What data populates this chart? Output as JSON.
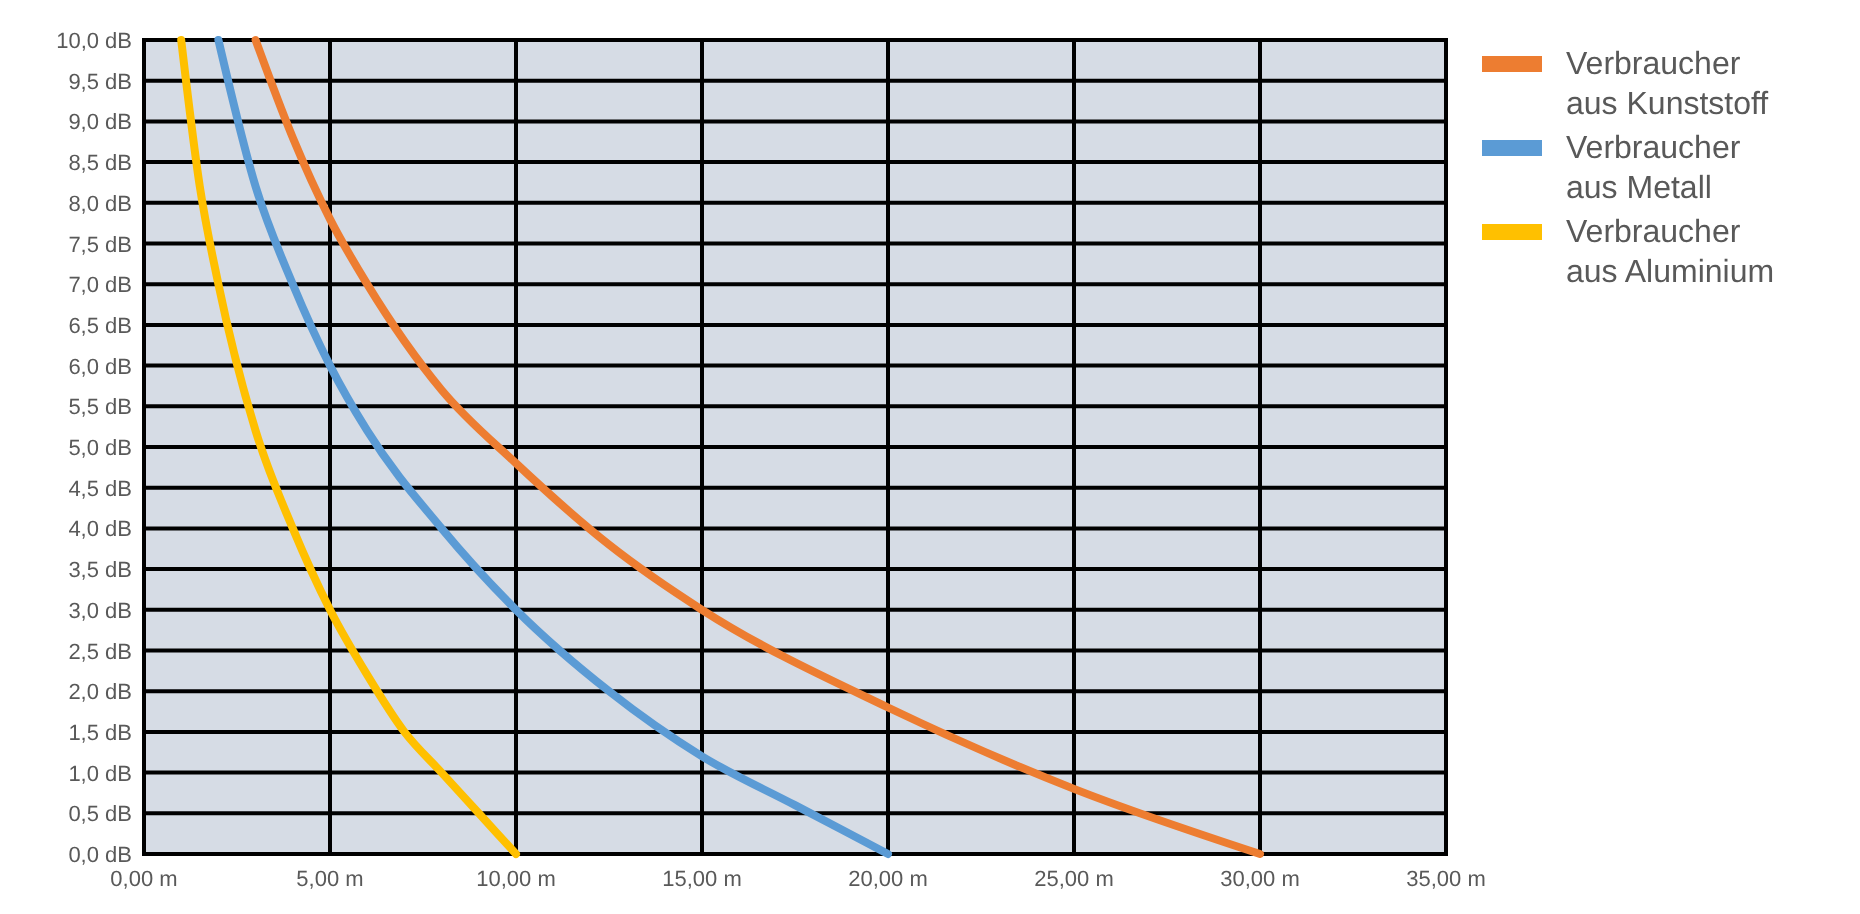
{
  "chart_data": {
    "type": "line",
    "xlim": [
      0,
      35
    ],
    "ylim": [
      0,
      10
    ],
    "xticks": [
      {
        "value": 0,
        "label": "0,00 m"
      },
      {
        "value": 5,
        "label": "5,00 m"
      },
      {
        "value": 10,
        "label": "10,00 m"
      },
      {
        "value": 15,
        "label": "15,00 m"
      },
      {
        "value": 20,
        "label": "20,00 m"
      },
      {
        "value": 25,
        "label": "25,00 m"
      },
      {
        "value": 30,
        "label": "30,00 m"
      },
      {
        "value": 35,
        "label": "35,00 m"
      }
    ],
    "yticks": [
      {
        "value": 0,
        "label": "0,0 dB"
      },
      {
        "value": 0.5,
        "label": "0,5 dB"
      },
      {
        "value": 1,
        "label": "1,0 dB"
      },
      {
        "value": 1.5,
        "label": "1,5 dB"
      },
      {
        "value": 2,
        "label": "2,0 dB"
      },
      {
        "value": 2.5,
        "label": "2,5 dB"
      },
      {
        "value": 3,
        "label": "3,0 dB"
      },
      {
        "value": 3.5,
        "label": "3,5 dB"
      },
      {
        "value": 4,
        "label": "4,0 dB"
      },
      {
        "value": 4.5,
        "label": "4,5 dB"
      },
      {
        "value": 5,
        "label": "5,0 dB"
      },
      {
        "value": 5.5,
        "label": "5,5 dB"
      },
      {
        "value": 6,
        "label": "6,0 dB"
      },
      {
        "value": 6.5,
        "label": "6,5 dB"
      },
      {
        "value": 7,
        "label": "7,0 dB"
      },
      {
        "value": 7.5,
        "label": "7,5 dB"
      },
      {
        "value": 8,
        "label": "8,0 dB"
      },
      {
        "value": 8.5,
        "label": "8,5 dB"
      },
      {
        "value": 9,
        "label": "9,0 dB"
      },
      {
        "value": 9.5,
        "label": "9,5 dB"
      },
      {
        "value": 10,
        "label": "10,0 dB"
      }
    ],
    "grid": true,
    "legend": "top right",
    "marker": "none",
    "line_style": "solid",
    "series": [
      {
        "name": "Verbraucher aus Kunststoff",
        "color": "#ed7d31",
        "x": [
          3,
          4,
          5,
          6,
          8,
          10,
          12.5,
          15,
          20,
          25,
          30
        ],
        "values": [
          10,
          8.8,
          7.8,
          7.0,
          5.7,
          4.8,
          3.8,
          3.0,
          1.8,
          0.8,
          0
        ]
      },
      {
        "name": "Verbraucher aus Metall",
        "color": "#5b9bd5",
        "x": [
          2,
          3,
          4,
          5,
          6,
          8,
          10,
          12.5,
          15,
          17.5,
          20
        ],
        "values": [
          10,
          8.2,
          7.0,
          6.0,
          5.2,
          4.0,
          3.0,
          2.0,
          1.2,
          0.6,
          0
        ]
      },
      {
        "name": "Verbraucher aus Aluminium",
        "color": "#ffc000",
        "x": [
          1,
          1.5,
          2,
          3,
          4,
          5,
          6,
          7,
          8,
          9,
          10
        ],
        "values": [
          10,
          8.2,
          7.0,
          5.2,
          4.0,
          3.0,
          2.2,
          1.5,
          1.0,
          0.5,
          0
        ]
      }
    ]
  }
}
